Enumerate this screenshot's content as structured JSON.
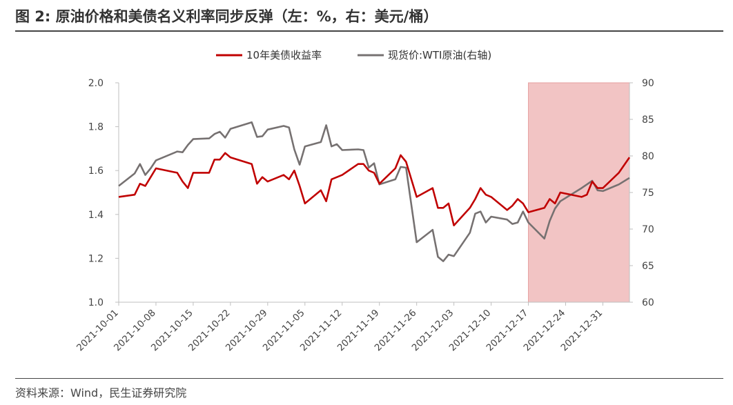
{
  "figure": {
    "title": "图 2: 原油价格和美债名义利率同步反弹（左：%，右：美元/桶）",
    "source": "资料来源：Wind，民生证券研究院"
  },
  "colors": {
    "series_treasury": "#c00000",
    "series_wti": "#767171",
    "highlight": "#f2c4c4",
    "axis": "#bfbfbf",
    "text": "#444444"
  },
  "chart_data": {
    "type": "line",
    "title": "",
    "legend_placement": "top-center",
    "grid": false,
    "x_tick_labels": [
      "2021-10-01",
      "2021-10-08",
      "2021-10-15",
      "2021-10-22",
      "2021-10-29",
      "2021-11-05",
      "2021-11-12",
      "2021-11-19",
      "2021-11-26",
      "2021-12-03",
      "2021-12-10",
      "2021-12-17",
      "2021-12-24",
      "2021-12-31"
    ],
    "xlim": [
      "2021-10-01",
      "2022-01-05"
    ],
    "y_left": {
      "ylim": [
        1.0,
        2.0
      ],
      "ticks": [
        "1.0",
        "1.2",
        "1.4",
        "1.6",
        "1.8",
        "2.0"
      ]
    },
    "y_right": {
      "ylim": [
        60,
        90
      ],
      "ticks": [
        "60",
        "65",
        "70",
        "75",
        "80",
        "85",
        "90"
      ]
    },
    "highlight_range": [
      "2021-12-17",
      "2022-01-05"
    ],
    "series": [
      {
        "name": "10年美债收益率",
        "axis": "left",
        "points": [
          [
            "2021-10-01",
            1.48
          ],
          [
            "2021-10-04",
            1.49
          ],
          [
            "2021-10-05",
            1.54
          ],
          [
            "2021-10-06",
            1.53
          ],
          [
            "2021-10-07",
            1.57
          ],
          [
            "2021-10-08",
            1.61
          ],
          [
            "2021-10-12",
            1.59
          ],
          [
            "2021-10-13",
            1.55
          ],
          [
            "2021-10-14",
            1.52
          ],
          [
            "2021-10-15",
            1.59
          ],
          [
            "2021-10-18",
            1.59
          ],
          [
            "2021-10-19",
            1.65
          ],
          [
            "2021-10-20",
            1.65
          ],
          [
            "2021-10-21",
            1.68
          ],
          [
            "2021-10-22",
            1.66
          ],
          [
            "2021-10-26",
            1.63
          ],
          [
            "2021-10-27",
            1.54
          ],
          [
            "2021-10-28",
            1.57
          ],
          [
            "2021-10-29",
            1.55
          ],
          [
            "2021-11-01",
            1.58
          ],
          [
            "2021-11-02",
            1.56
          ],
          [
            "2021-11-03",
            1.6
          ],
          [
            "2021-11-04",
            1.53
          ],
          [
            "2021-11-05",
            1.45
          ],
          [
            "2021-11-08",
            1.51
          ],
          [
            "2021-11-09",
            1.46
          ],
          [
            "2021-11-10",
            1.56
          ],
          [
            "2021-11-12",
            1.58
          ],
          [
            "2021-11-15",
            1.63
          ],
          [
            "2021-11-16",
            1.63
          ],
          [
            "2021-11-17",
            1.6
          ],
          [
            "2021-11-18",
            1.59
          ],
          [
            "2021-11-19",
            1.54
          ],
          [
            "2021-11-22",
            1.61
          ],
          [
            "2021-11-23",
            1.67
          ],
          [
            "2021-11-24",
            1.64
          ],
          [
            "2021-11-26",
            1.48
          ],
          [
            "2021-11-29",
            1.52
          ],
          [
            "2021-11-30",
            1.43
          ],
          [
            "2021-12-01",
            1.43
          ],
          [
            "2021-12-02",
            1.45
          ],
          [
            "2021-12-03",
            1.35
          ],
          [
            "2021-12-06",
            1.43
          ],
          [
            "2021-12-07",
            1.47
          ],
          [
            "2021-12-08",
            1.52
          ],
          [
            "2021-12-09",
            1.49
          ],
          [
            "2021-12-10",
            1.48
          ],
          [
            "2021-12-13",
            1.42
          ],
          [
            "2021-12-14",
            1.44
          ],
          [
            "2021-12-15",
            1.47
          ],
          [
            "2021-12-16",
            1.45
          ],
          [
            "2021-12-17",
            1.41
          ],
          [
            "2021-12-20",
            1.43
          ],
          [
            "2021-12-21",
            1.47
          ],
          [
            "2021-12-22",
            1.45
          ],
          [
            "2021-12-23",
            1.5
          ],
          [
            "2021-12-27",
            1.48
          ],
          [
            "2021-12-28",
            1.49
          ],
          [
            "2021-12-29",
            1.55
          ],
          [
            "2021-12-30",
            1.52
          ],
          [
            "2021-12-31",
            1.52
          ],
          [
            "2022-01-03",
            1.59
          ],
          [
            "2022-01-05",
            1.66
          ]
        ]
      },
      {
        "name": "现货价:WTI原油(右轴)",
        "axis": "right",
        "points": [
          [
            "2021-10-01",
            75.9
          ],
          [
            "2021-10-04",
            77.6
          ],
          [
            "2021-10-05",
            78.9
          ],
          [
            "2021-10-06",
            77.4
          ],
          [
            "2021-10-07",
            78.3
          ],
          [
            "2021-10-08",
            79.4
          ],
          [
            "2021-10-12",
            80.6
          ],
          [
            "2021-10-13",
            80.5
          ],
          [
            "2021-10-14",
            81.5
          ],
          [
            "2021-10-15",
            82.3
          ],
          [
            "2021-10-18",
            82.4
          ],
          [
            "2021-10-19",
            83.0
          ],
          [
            "2021-10-20",
            83.3
          ],
          [
            "2021-10-21",
            82.5
          ],
          [
            "2021-10-22",
            83.7
          ],
          [
            "2021-10-26",
            84.6
          ],
          [
            "2021-10-27",
            82.6
          ],
          [
            "2021-10-28",
            82.7
          ],
          [
            "2021-10-29",
            83.6
          ],
          [
            "2021-11-01",
            84.1
          ],
          [
            "2021-11-02",
            83.9
          ],
          [
            "2021-11-03",
            80.9
          ],
          [
            "2021-11-04",
            78.8
          ],
          [
            "2021-11-05",
            81.3
          ],
          [
            "2021-11-08",
            81.9
          ],
          [
            "2021-11-09",
            84.2
          ],
          [
            "2021-11-10",
            81.3
          ],
          [
            "2021-11-11",
            81.6
          ],
          [
            "2021-11-12",
            80.8
          ],
          [
            "2021-11-15",
            80.9
          ],
          [
            "2021-11-16",
            80.8
          ],
          [
            "2021-11-17",
            78.4
          ],
          [
            "2021-11-18",
            79.0
          ],
          [
            "2021-11-19",
            76.1
          ],
          [
            "2021-11-22",
            76.8
          ],
          [
            "2021-11-23",
            78.5
          ],
          [
            "2021-11-24",
            78.4
          ],
          [
            "2021-11-26",
            68.2
          ],
          [
            "2021-11-29",
            69.9
          ],
          [
            "2021-11-30",
            66.2
          ],
          [
            "2021-12-01",
            65.6
          ],
          [
            "2021-12-02",
            66.5
          ],
          [
            "2021-12-03",
            66.3
          ],
          [
            "2021-12-06",
            69.5
          ],
          [
            "2021-12-07",
            72.1
          ],
          [
            "2021-12-08",
            72.4
          ],
          [
            "2021-12-09",
            70.9
          ],
          [
            "2021-12-10",
            71.7
          ],
          [
            "2021-12-13",
            71.3
          ],
          [
            "2021-12-14",
            70.7
          ],
          [
            "2021-12-15",
            70.9
          ],
          [
            "2021-12-16",
            72.4
          ],
          [
            "2021-12-17",
            70.9
          ],
          [
            "2021-12-20",
            68.7
          ],
          [
            "2021-12-21",
            71.1
          ],
          [
            "2021-12-22",
            72.8
          ],
          [
            "2021-12-23",
            73.8
          ],
          [
            "2021-12-27",
            75.6
          ],
          [
            "2021-12-28",
            76.1
          ],
          [
            "2021-12-29",
            76.6
          ],
          [
            "2021-12-30",
            75.3
          ],
          [
            "2021-12-31",
            75.2
          ],
          [
            "2022-01-03",
            76.1
          ],
          [
            "2022-01-05",
            77.0
          ]
        ]
      }
    ]
  }
}
